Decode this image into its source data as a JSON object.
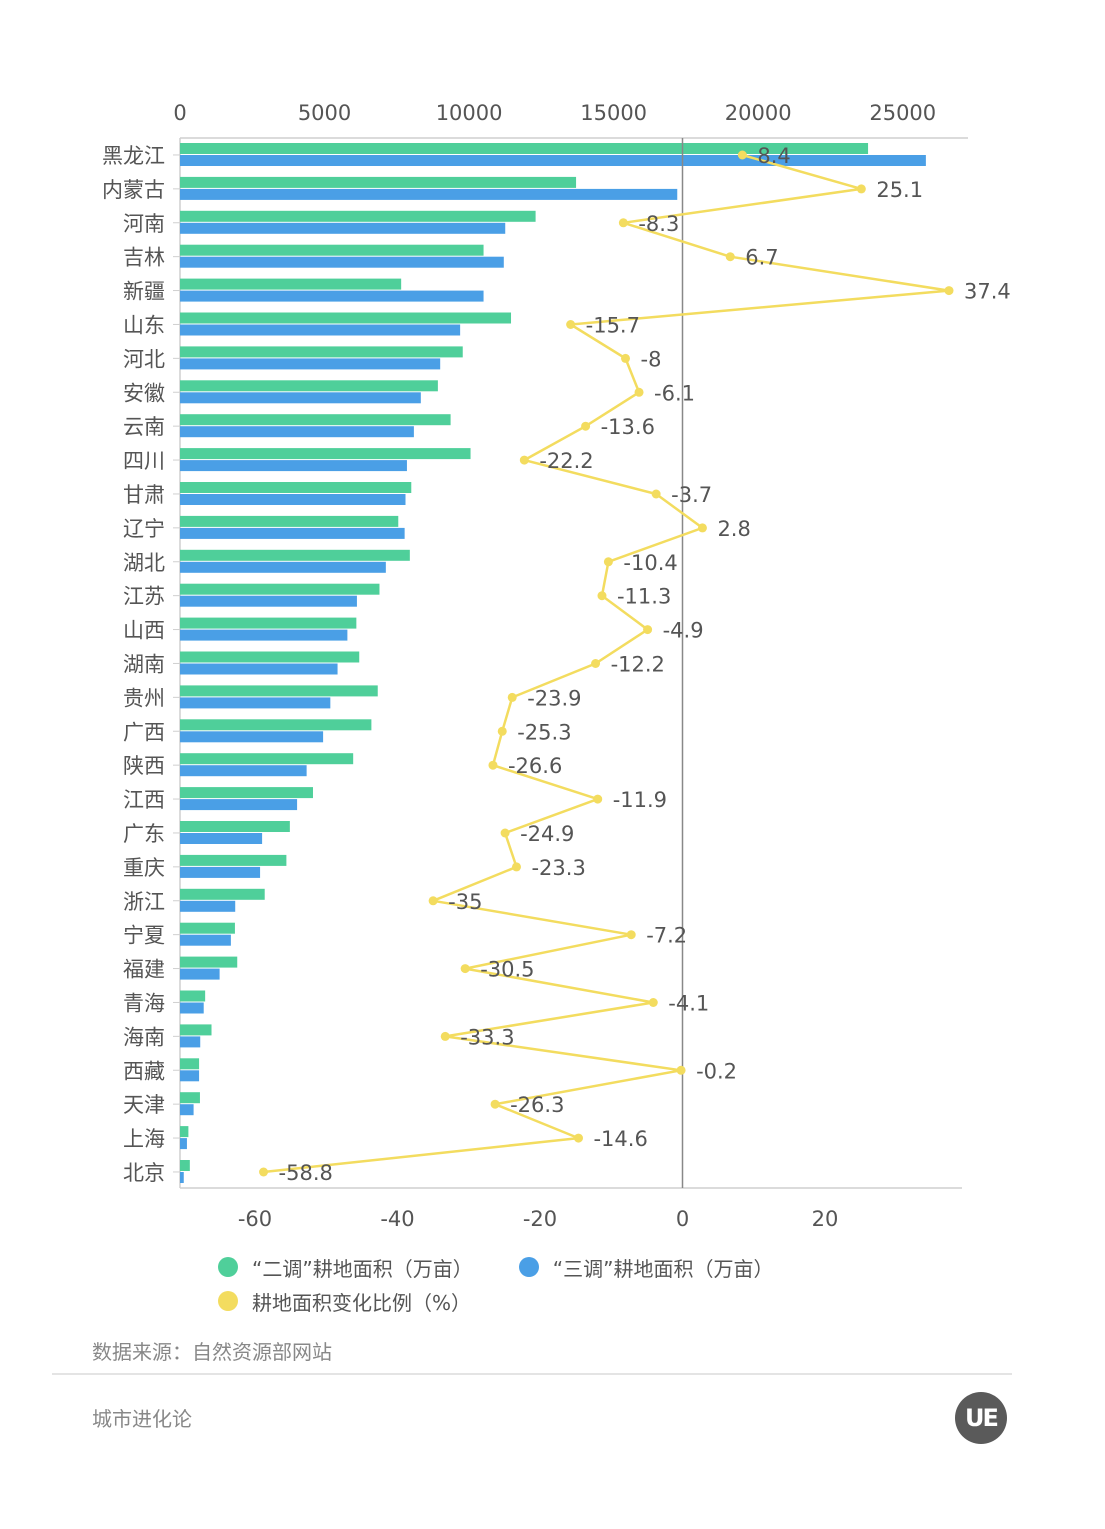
{
  "colors": {
    "series1": "#4fcf9a",
    "series2": "#4a9fe6",
    "line": "#f3dc5f",
    "axis": "#cfcfcf",
    "zero_line": "#888888",
    "text": "#555555"
  },
  "legend": {
    "series1": "“二调”耕地面积（万亩）",
    "series2": "“三调”耕地面积（万亩）",
    "line": "耕地面积变化比例（%）"
  },
  "footer": {
    "source": "数据来源：自然资源部网站",
    "brand": "城市进化论",
    "logo": "UE"
  },
  "chart_data": {
    "type": "bar",
    "orientation": "horizontal",
    "categories": [
      "黑龙江",
      "内蒙古",
      "河南",
      "吉林",
      "新疆",
      "山东",
      "河北",
      "安徽",
      "云南",
      "四川",
      "甘肃",
      "辽宁",
      "湖北",
      "江苏",
      "山西",
      "湖南",
      "贵州",
      "广西",
      "陕西",
      "江西",
      "广东",
      "重庆",
      "浙江",
      "宁夏",
      "福建",
      "青海",
      "海南",
      "西藏",
      "天津",
      "上海",
      "北京"
    ],
    "top_axis": {
      "ticks": [
        "0",
        "5000",
        "10000",
        "15000",
        "20000",
        "25000"
      ],
      "range": [
        0,
        27000
      ]
    },
    "bottom_axis": {
      "ticks": [
        "-60",
        "-40",
        "-20",
        "0",
        "20"
      ],
      "range": [
        -71,
        39
      ]
    },
    "series": [
      {
        "name": "“二调”耕地面积（万亩）",
        "axis": "top",
        "values": [
          23800,
          13700,
          12300,
          10500,
          7650,
          11450,
          9780,
          8920,
          9360,
          10050,
          8000,
          7550,
          7950,
          6900,
          6100,
          6200,
          6840,
          6620,
          5990,
          4600,
          3800,
          3680,
          2930,
          1900,
          1980,
          870,
          1090,
          660,
          690,
          290,
          340
        ]
      },
      {
        "name": "“三调”耕地面积（万亩）",
        "axis": "top",
        "values": [
          25800,
          17200,
          11250,
          11200,
          10500,
          9690,
          9000,
          8330,
          8090,
          7850,
          7800,
          7770,
          7120,
          6120,
          5790,
          5450,
          5200,
          4950,
          4380,
          4050,
          2840,
          2770,
          1910,
          1760,
          1370,
          820,
          700,
          660,
          470,
          240,
          130
        ]
      },
      {
        "name": "耕地面积变化比例（%）",
        "axis": "bottom",
        "type": "line",
        "values": [
          8.4,
          25.1,
          -8.3,
          6.7,
          37.4,
          -15.7,
          -8,
          -6.1,
          -13.6,
          -22.2,
          -3.7,
          2.8,
          -10.4,
          -11.3,
          -4.9,
          -12.2,
          -23.9,
          -25.3,
          -26.6,
          -11.9,
          -24.9,
          -23.3,
          -35,
          -7.2,
          -30.5,
          -4.1,
          -33.3,
          -0.2,
          -26.3,
          -14.6,
          -58.8
        ],
        "labels": [
          "8.4",
          "25.1",
          "-8.3",
          "6.7",
          "37.4",
          "-15.7",
          "-8",
          "-6.1",
          "-13.6",
          "-22.2",
          "-3.7",
          "2.8",
          "-10.4",
          "-11.3",
          "-4.9",
          "-12.2",
          "-23.9",
          "-25.3",
          "-26.6",
          "-11.9",
          "-24.9",
          "-23.3",
          "-35",
          "-7.2",
          "-30.5",
          "-4.1",
          "-33.3",
          "-0.2",
          "-26.3",
          "-14.6",
          "-58.8"
        ]
      }
    ],
    "grid": false,
    "legend_position": "bottom"
  }
}
